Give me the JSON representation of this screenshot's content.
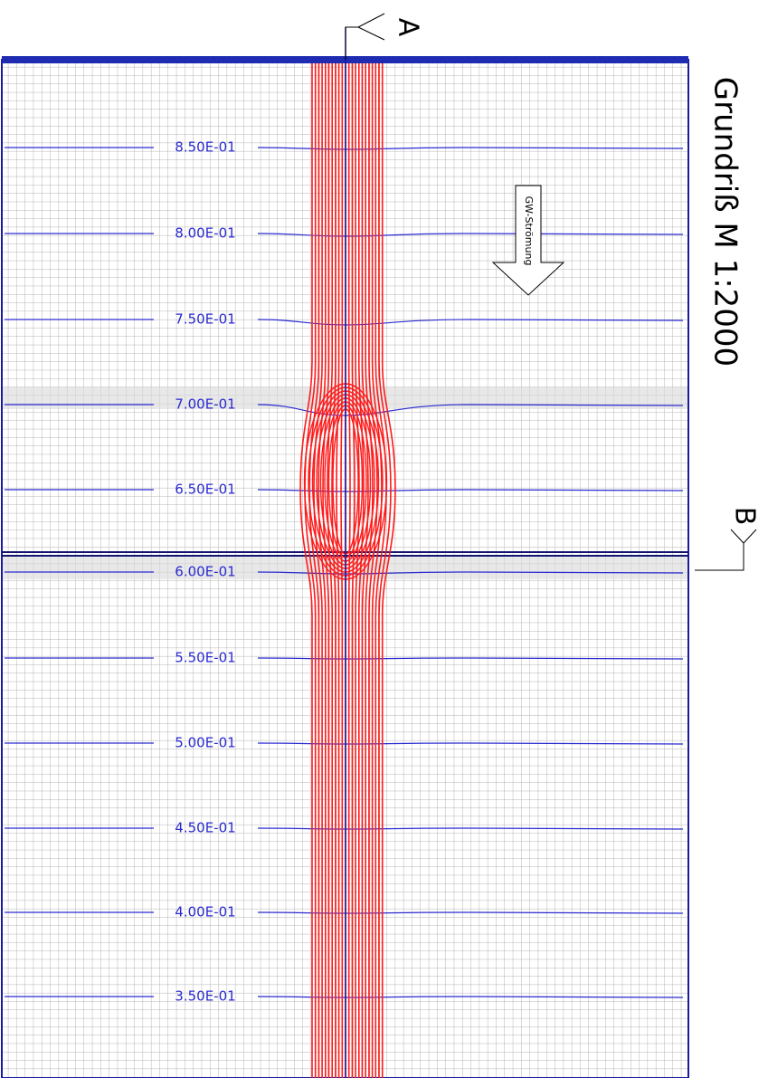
{
  "title": "Grundriß M 1:2000",
  "section_a": "A",
  "section_b": "B",
  "flow_label": "GW-Strömung",
  "contour_labels": [
    "8.50E-01",
    "8.00E-01",
    "7.50E-01",
    "7.00E-01",
    "6.50E-01",
    "6.00E-01",
    "5.50E-01",
    "5.00E-01",
    "4.50E-01",
    "4.00E-01",
    "3.50E-01"
  ]
}
